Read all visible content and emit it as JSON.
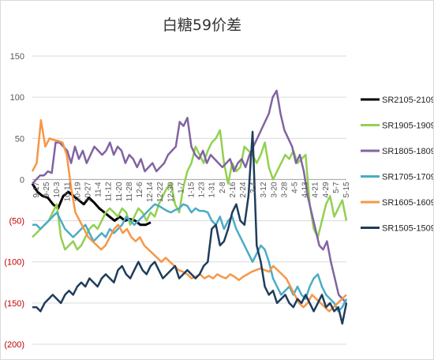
{
  "chart_data": {
    "type": "line",
    "title": "白糖59价差",
    "xlabel": "",
    "ylabel": "",
    "ylim": [
      -200,
      150
    ],
    "y_ticks": [
      {
        "value": 150,
        "label": "150",
        "color": "#595959"
      },
      {
        "value": 100,
        "label": "100",
        "color": "#595959"
      },
      {
        "value": 50,
        "label": "50",
        "color": "#595959"
      },
      {
        "value": 0,
        "label": "0",
        "color": "#595959"
      },
      {
        "value": -50,
        "label": "(50)",
        "color": "#c00000"
      },
      {
        "value": -100,
        "label": "(100)",
        "color": "#c00000"
      },
      {
        "value": -150,
        "label": "(150)",
        "color": "#c00000"
      },
      {
        "value": -200,
        "label": "(200)",
        "color": "#c00000"
      }
    ],
    "x_ticks": [
      "9-17",
      "9-25",
      "10-3",
      "10-11",
      "10-19",
      "10-27",
      "11-4",
      "11-12",
      "11-20",
      "11-28",
      "12-6",
      "12-14",
      "12-22",
      "12-30",
      "1-7",
      "1-15",
      "1-23",
      "1-31",
      "2-8",
      "2-16",
      "2-24",
      "3-4",
      "3-12",
      "3-20",
      "3-28",
      "4-5",
      "4-13",
      "4-21",
      "4-29",
      "5-7",
      "5-15"
    ],
    "grid": true,
    "legend_position": "right",
    "series": [
      {
        "name": "SR2105-2109",
        "color": "#000000",
        "values": [
          -5,
          -15,
          -20,
          -22,
          -30,
          -35,
          -20,
          -15,
          -20,
          -25,
          -30,
          -22,
          -28,
          -35,
          -40,
          -45,
          -50,
          -45,
          -50,
          -48,
          -50,
          -55,
          -55,
          -52
        ]
      },
      {
        "name": "SR1905-1909",
        "color": "#92d050",
        "values": [
          -70,
          -65,
          -60,
          -55,
          -50,
          -40,
          -30,
          -70,
          -85,
          -80,
          -75,
          -85,
          -80,
          -70,
          -60,
          -55,
          -60,
          -50,
          -40,
          -35,
          -40,
          -45,
          -35,
          -40,
          -55,
          -45,
          -35,
          -40,
          -50,
          -40,
          -45,
          -30,
          -20,
          -10,
          -5,
          -30,
          -40,
          -10,
          10,
          20,
          40,
          30,
          20,
          35,
          45,
          50,
          60,
          20,
          -5,
          20,
          10,
          15,
          40,
          35,
          30,
          20,
          30,
          45,
          15,
          0,
          10,
          20,
          30,
          25,
          35,
          20,
          25,
          30,
          -30,
          -60,
          -70,
          -50,
          -30,
          -20,
          -45,
          -35,
          -25,
          -50
        ]
      },
      {
        "name": "SR1805-1809",
        "color": "#8064a2",
        "values": [
          -5,
          0,
          5,
          5,
          10,
          8,
          45,
          45,
          40,
          35,
          20,
          40,
          25,
          35,
          20,
          30,
          40,
          35,
          30,
          35,
          45,
          30,
          40,
          35,
          20,
          30,
          25,
          15,
          25,
          10,
          15,
          20,
          10,
          15,
          20,
          30,
          35,
          40,
          70,
          65,
          75,
          40,
          30,
          25,
          35,
          20,
          30,
          25,
          20,
          15,
          20,
          25,
          10,
          20,
          25,
          15,
          30,
          40,
          50,
          60,
          70,
          80,
          100,
          108,
          80,
          60,
          50,
          40,
          20,
          30,
          10,
          -20,
          -40,
          -60,
          -80,
          -85,
          -75,
          -100,
          -120,
          -140,
          -145,
          -150
        ]
      },
      {
        "name": "SR1705-1709",
        "color": "#4bacc6",
        "values": [
          -55,
          -55,
          -60,
          -55,
          -50,
          -45,
          -40,
          -50,
          -60,
          -65,
          -70,
          -65,
          -60,
          -55,
          -65,
          -75,
          -70,
          -65,
          -70,
          -60,
          -65,
          -60,
          -55,
          -45,
          -50,
          -55,
          -50,
          -45,
          -40,
          -35,
          -30,
          -32,
          -35,
          -38,
          -40,
          -37,
          -35,
          -30,
          -32,
          -40,
          -35,
          -38,
          -38,
          -40,
          -50,
          -55,
          -45,
          -60,
          -50,
          -45,
          -60,
          -70,
          -80,
          -90,
          -100,
          -90,
          -80,
          -85,
          -100,
          -120,
          -130,
          -140,
          -135,
          -130,
          -140,
          -130,
          -140,
          -145,
          -130,
          -120,
          -115,
          -130,
          -140,
          -145,
          -150,
          -160,
          -155,
          -145
        ]
      },
      {
        "name": "SR1605-1609",
        "color": "#f79646",
        "values": [
          10,
          20,
          72,
          40,
          50,
          48,
          47,
          45,
          30,
          -10,
          -40,
          -50,
          -60,
          -70,
          -75,
          -80,
          -85,
          -80,
          -70,
          -60,
          -55,
          -65,
          -60,
          -70,
          -75,
          -70,
          -80,
          -85,
          -90,
          -95,
          -100,
          -95,
          -100,
          -105,
          -110,
          -112,
          -115,
          -120,
          -118,
          -115,
          -120,
          -117,
          -120,
          -115,
          -118,
          -120,
          -115,
          -118,
          -122,
          -118,
          -115,
          -112,
          -110,
          -108,
          -110,
          -112,
          -105,
          -110,
          -115,
          -120,
          -130,
          -140,
          -150,
          -155,
          -150,
          -140,
          -145,
          -150,
          -155,
          -160,
          -155,
          -150,
          -145,
          -140
        ]
      },
      {
        "name": "SR1505-1509",
        "color": "#1f3d5c",
        "values": [
          -155,
          -155,
          -160,
          -150,
          -145,
          -140,
          -145,
          -150,
          -140,
          -135,
          -140,
          -130,
          -125,
          -130,
          -120,
          -125,
          -130,
          -120,
          -115,
          -120,
          -125,
          -110,
          -105,
          -115,
          -120,
          -110,
          -100,
          -110,
          -115,
          -105,
          -100,
          -110,
          -120,
          -115,
          -110,
          -105,
          -120,
          -115,
          -110,
          -115,
          -120,
          -115,
          -105,
          -100,
          -60,
          -55,
          -80,
          -75,
          -60,
          -40,
          -30,
          -50,
          -55,
          -20,
          58,
          -80,
          -100,
          -130,
          -140,
          -135,
          -150,
          -145,
          -140,
          -150,
          -155,
          -145,
          -150,
          -140,
          -150,
          -160,
          -150,
          -140,
          -155,
          -150,
          -160,
          -155,
          -175,
          -150
        ]
      }
    ]
  }
}
